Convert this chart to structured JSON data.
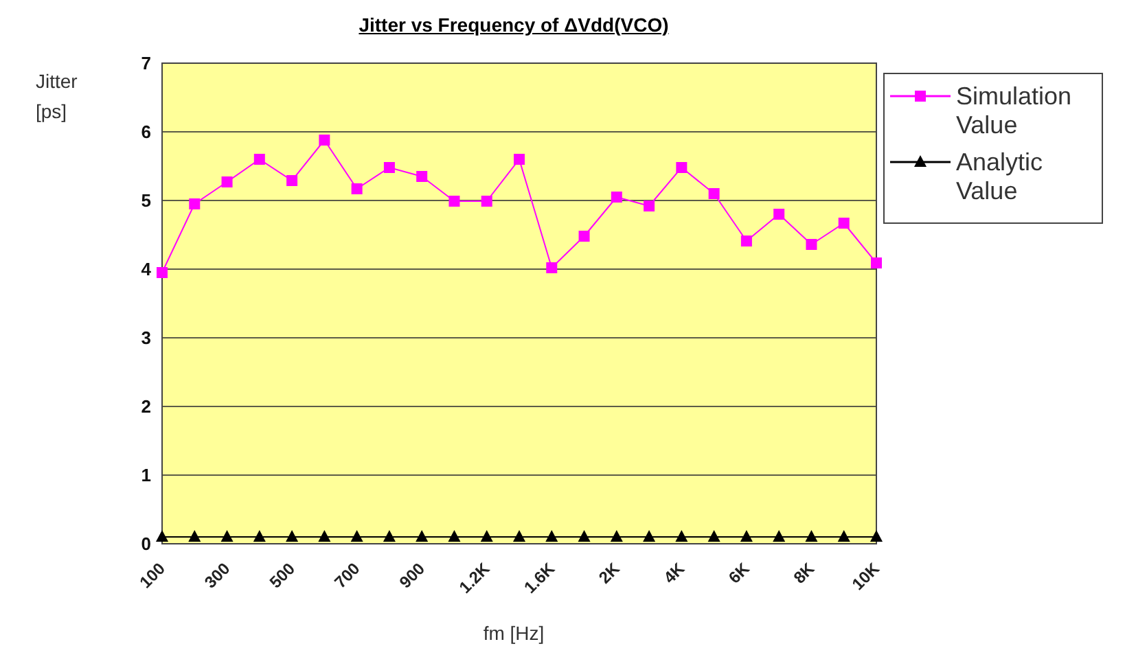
{
  "chart_data": {
    "type": "line",
    "title": "Jitter vs Frequency of ΔVdd(VCO)",
    "xlabel": "fm [Hz]",
    "ylabel": "Jitter [ps]",
    "categories": [
      "100",
      null,
      "300",
      null,
      "500",
      null,
      "700",
      null,
      "900",
      null,
      "1.2K",
      null,
      "1.6K",
      null,
      "2K",
      null,
      "4K",
      null,
      "6K",
      null,
      "8K",
      null,
      "10K"
    ],
    "series": [
      {
        "name": "Simulation Value",
        "color": "#ff00ff",
        "marker": "square",
        "values": [
          3.95,
          4.95,
          5.27,
          5.6,
          5.29,
          5.88,
          5.17,
          5.48,
          5.35,
          4.99,
          4.99,
          5.6,
          4.02,
          4.48,
          5.05,
          4.92,
          5.48,
          5.1,
          4.41,
          4.8,
          4.36,
          4.67,
          4.09
        ]
      },
      {
        "name": "Analytic Value",
        "color": "#000000",
        "marker": "triangle",
        "values": [
          0.1,
          0.1,
          0.1,
          0.1,
          0.1,
          0.1,
          0.1,
          0.1,
          0.1,
          0.1,
          0.1,
          0.1,
          0.1,
          0.1,
          0.1,
          0.1,
          0.1,
          0.1,
          0.1,
          0.1,
          0.1,
          0.1,
          0.1
        ]
      }
    ],
    "ylim": [
      0,
      7
    ],
    "yticks": [
      0,
      1,
      2,
      3,
      4,
      5,
      6,
      7
    ],
    "grid": "y",
    "legend": "right"
  }
}
